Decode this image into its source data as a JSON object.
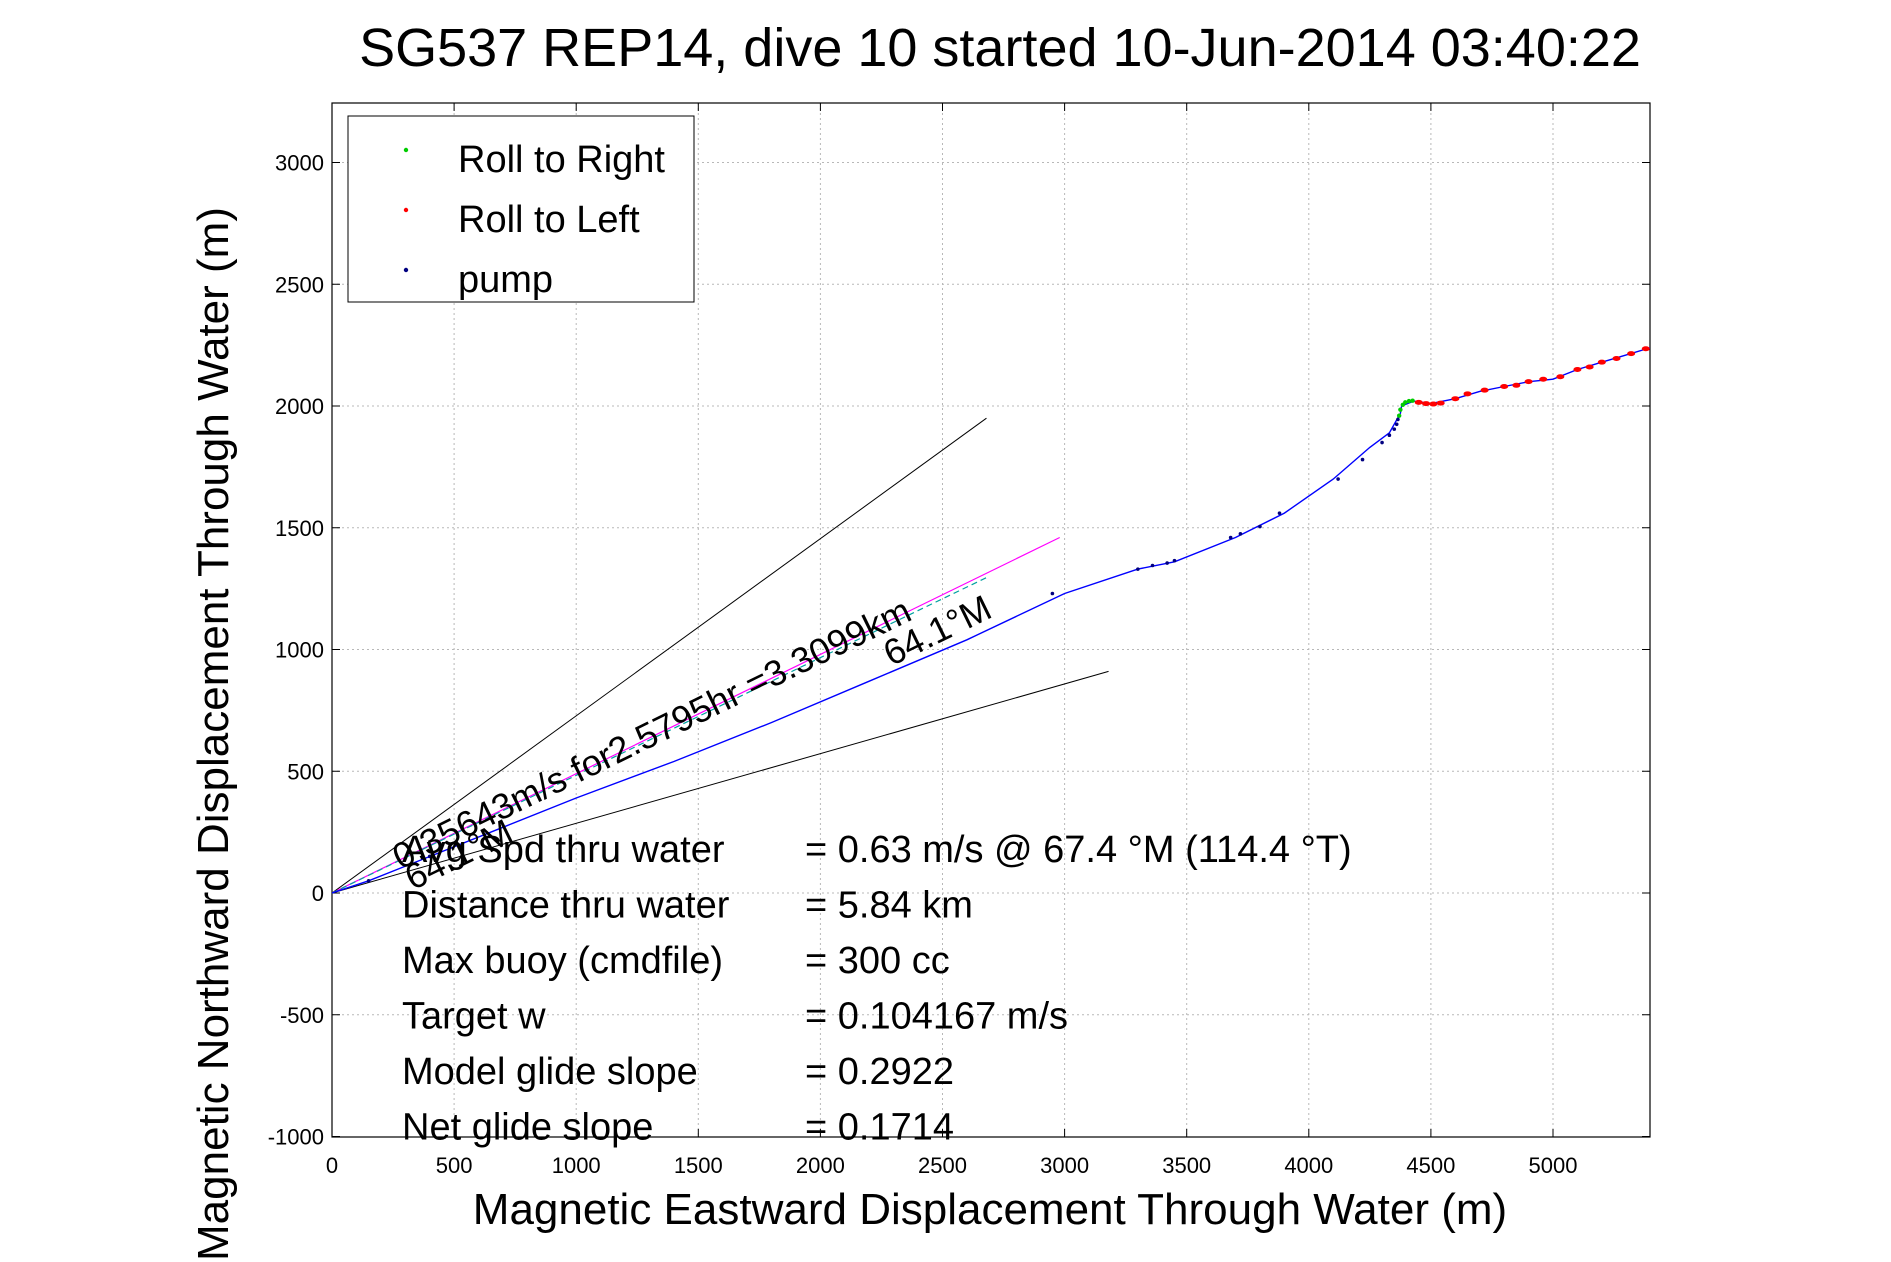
{
  "chart_data": {
    "type": "scatter",
    "title": "SG537 REP14, dive 10 started 10-Jun-2014 03:40:22",
    "xlabel": "Magnetic Eastward Displacement Through Water (m)",
    "ylabel": "Magnetic Northward Displacement Through Water (m)",
    "xlim": [
      0,
      5400
    ],
    "ylim": [
      -1000,
      3000
    ],
    "xticks": [
      0,
      500,
      1000,
      1500,
      2000,
      2500,
      3000,
      3500,
      4000,
      4500,
      5000
    ],
    "yticks": [
      -1000,
      -500,
      0,
      500,
      1000,
      1500,
      2000,
      2500,
      3000
    ],
    "grid": true,
    "legend_position": "top-left",
    "legend": [
      {
        "label": "Roll to Right",
        "color": "#00cc00"
      },
      {
        "label": "Roll to Left",
        "color": "#ff0000"
      },
      {
        "label": "pump",
        "color": "#000080"
      }
    ],
    "track_color": "#0000ff",
    "track": [
      [
        0,
        0
      ],
      [
        150,
        50
      ],
      [
        400,
        150
      ],
      [
        700,
        270
      ],
      [
        1000,
        390
      ],
      [
        1400,
        540
      ],
      [
        1800,
        700
      ],
      [
        2200,
        870
      ],
      [
        2600,
        1040
      ],
      [
        3000,
        1230
      ],
      [
        3300,
        1330
      ],
      [
        3450,
        1360
      ],
      [
        3700,
        1460
      ],
      [
        3900,
        1560
      ],
      [
        4100,
        1700
      ],
      [
        4250,
        1830
      ],
      [
        4330,
        1890
      ],
      [
        4375,
        1970
      ],
      [
        4380,
        2000
      ],
      [
        4430,
        2020
      ],
      [
        4500,
        2010
      ],
      [
        4600,
        2030
      ],
      [
        4700,
        2060
      ],
      [
        4800,
        2080
      ],
      [
        4900,
        2100
      ],
      [
        5000,
        2110
      ],
      [
        5100,
        2150
      ],
      [
        5200,
        2180
      ],
      [
        5300,
        2210
      ],
      [
        5400,
        2240
      ]
    ],
    "pump_points": [
      [
        150,
        50
      ],
      [
        400,
        150
      ],
      [
        2950,
        1230
      ],
      [
        3300,
        1330
      ],
      [
        3360,
        1345
      ],
      [
        3420,
        1355
      ],
      [
        3450,
        1365
      ],
      [
        3680,
        1460
      ],
      [
        3720,
        1475
      ],
      [
        3800,
        1505
      ],
      [
        3880,
        1560
      ],
      [
        4120,
        1700
      ],
      [
        4220,
        1780
      ],
      [
        4300,
        1850
      ],
      [
        4330,
        1880
      ],
      [
        4350,
        1905
      ],
      [
        4360,
        1925
      ],
      [
        4365,
        1945
      ]
    ],
    "roll_right_points": [
      [
        4370,
        1960
      ],
      [
        4375,
        1985
      ],
      [
        4385,
        2005
      ],
      [
        4395,
        2015
      ],
      [
        4410,
        2020
      ],
      [
        4425,
        2022
      ]
    ],
    "roll_left_points": [
      [
        4450,
        2015
      ],
      [
        4480,
        2010
      ],
      [
        4510,
        2008
      ],
      [
        4540,
        2012
      ],
      [
        4600,
        2030
      ],
      [
        4650,
        2050
      ],
      [
        4720,
        2065
      ],
      [
        4800,
        2080
      ],
      [
        4850,
        2085
      ],
      [
        4900,
        2100
      ],
      [
        4960,
        2110
      ],
      [
        5030,
        2120
      ],
      [
        5100,
        2150
      ],
      [
        5150,
        2160
      ],
      [
        5200,
        2180
      ],
      [
        5260,
        2195
      ],
      [
        5320,
        2215
      ],
      [
        5380,
        2235
      ]
    ],
    "guide_lines": [
      {
        "name": "upper-bound",
        "from": [
          0,
          0
        ],
        "to": [
          2680,
          1950
        ],
        "color": "#000000"
      },
      {
        "name": "mid-heading",
        "from": [
          0,
          0
        ],
        "to": [
          2980,
          1460
        ],
        "color": "#ff00ff"
      },
      {
        "name": "lower-bound",
        "from": [
          0,
          0
        ],
        "to": [
          3180,
          910
        ],
        "color": "#000000"
      },
      {
        "name": "current-line",
        "from": [
          0,
          0
        ],
        "to": [
          2690,
          1300
        ],
        "color": "#00a0a0"
      }
    ],
    "annotations": [
      {
        "text": "0.35643m/s for2.5795hr =3.3099km",
        "x": 280,
        "y": 95,
        "angle_data": [
          1,
          0.49
        ]
      },
      {
        "text": "64.1°M",
        "x": 2290,
        "y": 930,
        "angle_data": [
          1,
          0.49
        ]
      },
      {
        "text": "64.1°M",
        "x": 330,
        "y": 10,
        "angle_data": [
          1,
          0.49
        ]
      }
    ],
    "stats": [
      {
        "label": "Avg Spd thru water",
        "value": "=  0.63 m/s @  67.4 °M (114.4 °T)"
      },
      {
        "label": "Distance thru water",
        "value": "=  5.84 km"
      },
      {
        "label": "Max buoy (cmdfile)",
        "value": "= 300 cc"
      },
      {
        "label": "Target w",
        "value": "= 0.104167 m/s"
      },
      {
        "label": "Model glide slope",
        "value": "= 0.2922"
      },
      {
        "label": "Net glide slope",
        "value": "= 0.1714"
      }
    ]
  }
}
